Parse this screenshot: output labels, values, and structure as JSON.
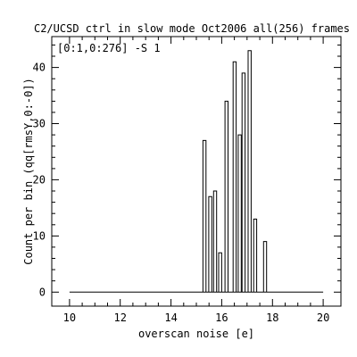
{
  "chart_data": {
    "type": "bar",
    "title": "C2/UCSD ctrl in slow mode Oct2006 all(256) frames",
    "annotation": "[0:1,0:276] -S 1",
    "xlabel": "overscan noise [e]",
    "ylabel": "Count per bin (qq[rmsY,0:-0])",
    "xlim": [
      9.3,
      20.7
    ],
    "ylim": [
      -2.5,
      45.5
    ],
    "x_ticks": [
      10,
      12,
      14,
      16,
      18,
      20
    ],
    "y_ticks": [
      0,
      10,
      20,
      30,
      40
    ],
    "bin_width": 0.12,
    "line_range": [
      10,
      20
    ],
    "bins": [
      {
        "x": 15.32,
        "value": 27
      },
      {
        "x": 15.55,
        "value": 17
      },
      {
        "x": 15.74,
        "value": 18
      },
      {
        "x": 15.94,
        "value": 7
      },
      {
        "x": 16.19,
        "value": 34
      },
      {
        "x": 16.51,
        "value": 41
      },
      {
        "x": 16.71,
        "value": 28
      },
      {
        "x": 16.86,
        "value": 39
      },
      {
        "x": 17.1,
        "value": 43
      },
      {
        "x": 17.32,
        "value": 13
      },
      {
        "x": 17.71,
        "value": 9
      }
    ],
    "grid": false,
    "legend": "none"
  }
}
